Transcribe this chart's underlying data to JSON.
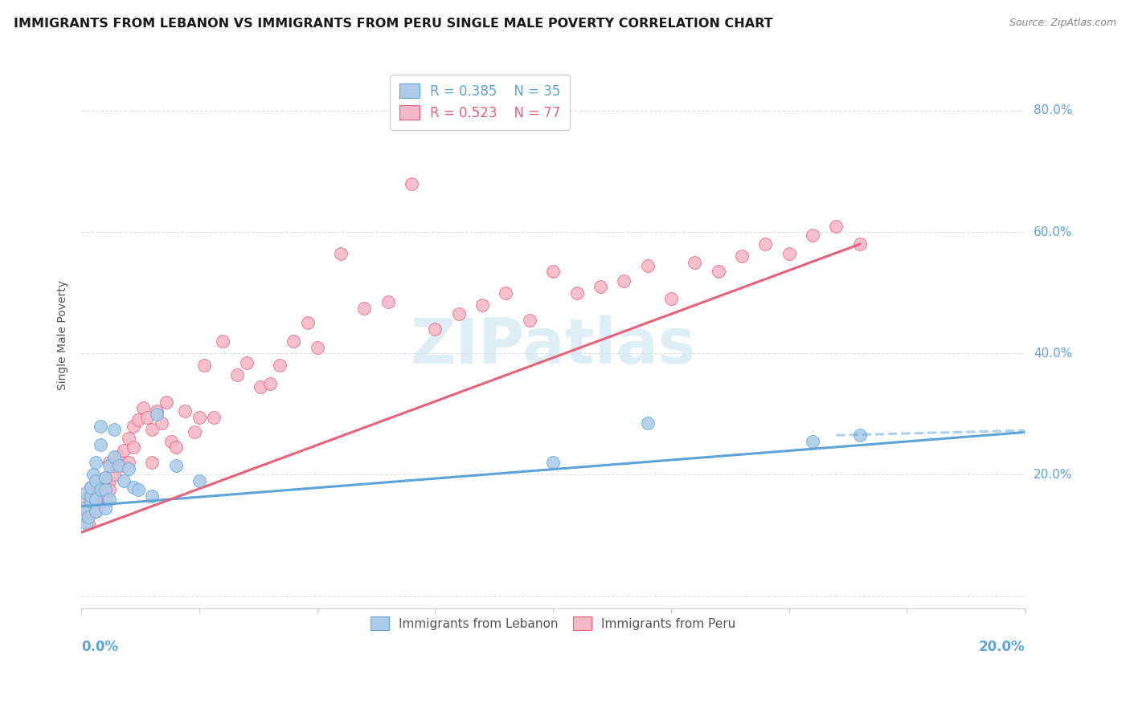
{
  "title": "IMMIGRANTS FROM LEBANON VS IMMIGRANTS FROM PERU SINGLE MALE POVERTY CORRELATION CHART",
  "source": "Source: ZipAtlas.com",
  "ylabel": "Single Male Poverty",
  "ytick_values": [
    0.0,
    0.2,
    0.4,
    0.6,
    0.8
  ],
  "ytick_labels": [
    "0.0%",
    "20.0%",
    "40.0%",
    "60.0%",
    "80.0%"
  ],
  "xlim": [
    0.0,
    0.2
  ],
  "ylim": [
    -0.02,
    0.88
  ],
  "legend_lb_R": "0.385",
  "legend_lb_N": "35",
  "legend_peru_R": "0.523",
  "legend_peru_N": "77",
  "lb_fill_color": "#aecce8",
  "peru_fill_color": "#f5b8c8",
  "lb_edge_color": "#5ba3d9",
  "peru_edge_color": "#e8607a",
  "lb_line_color": "#5ba3d9",
  "peru_line_color": "#e8607a",
  "watermark_color": "#d0e8f5",
  "background_color": "#ffffff",
  "grid_color": "#e0e0e0",
  "title_color": "#1a1a1a",
  "axis_label_color": "#5ba3d9",
  "lb_scatter_x": [
    0.0005,
    0.001,
    0.001,
    0.0015,
    0.002,
    0.002,
    0.002,
    0.0025,
    0.003,
    0.003,
    0.003,
    0.003,
    0.004,
    0.004,
    0.004,
    0.005,
    0.005,
    0.005,
    0.006,
    0.006,
    0.007,
    0.007,
    0.008,
    0.009,
    0.01,
    0.011,
    0.012,
    0.015,
    0.016,
    0.02,
    0.025,
    0.1,
    0.12,
    0.155,
    0.165
  ],
  "lb_scatter_y": [
    0.145,
    0.12,
    0.17,
    0.13,
    0.155,
    0.165,
    0.18,
    0.2,
    0.14,
    0.16,
    0.19,
    0.22,
    0.25,
    0.28,
    0.175,
    0.195,
    0.175,
    0.145,
    0.16,
    0.215,
    0.275,
    0.23,
    0.215,
    0.19,
    0.21,
    0.18,
    0.175,
    0.165,
    0.3,
    0.215,
    0.19,
    0.22,
    0.285,
    0.255,
    0.265
  ],
  "peru_scatter_x": [
    0.0005,
    0.001,
    0.001,
    0.0015,
    0.002,
    0.002,
    0.002,
    0.0025,
    0.003,
    0.003,
    0.003,
    0.004,
    0.004,
    0.004,
    0.005,
    0.005,
    0.005,
    0.006,
    0.006,
    0.006,
    0.007,
    0.007,
    0.008,
    0.008,
    0.009,
    0.009,
    0.01,
    0.01,
    0.011,
    0.011,
    0.012,
    0.013,
    0.014,
    0.015,
    0.015,
    0.016,
    0.017,
    0.018,
    0.019,
    0.02,
    0.022,
    0.024,
    0.025,
    0.026,
    0.028,
    0.03,
    0.033,
    0.035,
    0.038,
    0.04,
    0.042,
    0.045,
    0.048,
    0.05,
    0.055,
    0.06,
    0.065,
    0.07,
    0.075,
    0.08,
    0.085,
    0.09,
    0.095,
    0.1,
    0.105,
    0.11,
    0.115,
    0.12,
    0.125,
    0.13,
    0.135,
    0.14,
    0.145,
    0.15,
    0.155,
    0.16,
    0.165
  ],
  "peru_scatter_y": [
    0.14,
    0.13,
    0.16,
    0.12,
    0.155,
    0.18,
    0.145,
    0.165,
    0.16,
    0.175,
    0.14,
    0.165,
    0.185,
    0.155,
    0.18,
    0.195,
    0.165,
    0.19,
    0.175,
    0.22,
    0.2,
    0.215,
    0.225,
    0.23,
    0.24,
    0.215,
    0.26,
    0.22,
    0.245,
    0.28,
    0.29,
    0.31,
    0.295,
    0.22,
    0.275,
    0.305,
    0.285,
    0.32,
    0.255,
    0.245,
    0.305,
    0.27,
    0.295,
    0.38,
    0.295,
    0.42,
    0.365,
    0.385,
    0.345,
    0.35,
    0.38,
    0.42,
    0.45,
    0.41,
    0.565,
    0.475,
    0.485,
    0.68,
    0.44,
    0.465,
    0.48,
    0.5,
    0.455,
    0.535,
    0.5,
    0.51,
    0.52,
    0.545,
    0.49,
    0.55,
    0.535,
    0.56,
    0.58,
    0.565,
    0.595,
    0.61,
    0.58
  ],
  "lb_trend_x": [
    0.0,
    0.2
  ],
  "lb_trend_y": [
    0.148,
    0.27
  ],
  "peru_trend_x": [
    0.0,
    0.165
  ],
  "peru_trend_y": [
    0.105,
    0.58
  ]
}
